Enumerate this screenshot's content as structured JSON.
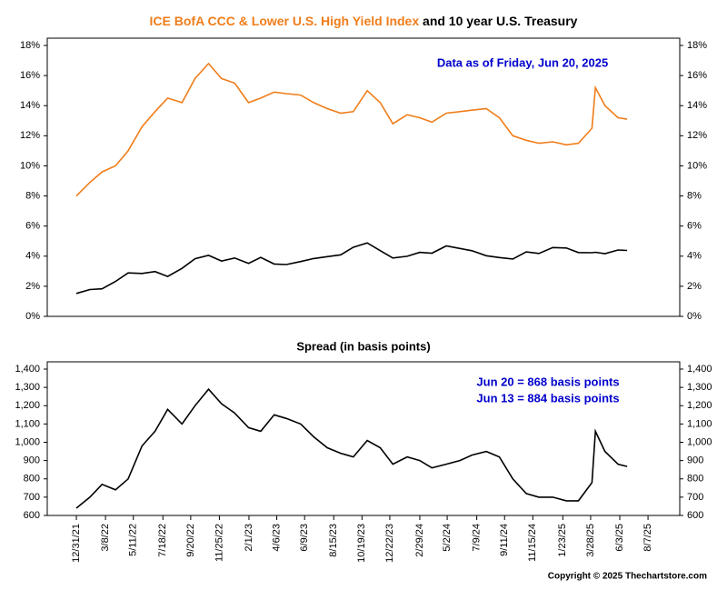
{
  "chart_data": [
    {
      "type": "line",
      "title": [
        "ICE BofA CCC & Lower U.S. High Yield Index",
        "and 10 year U.S. Treasury"
      ],
      "title_colors": [
        "#f07d1a",
        "#000000"
      ],
      "annotation": "Data as of Friday, Jun 20, 2025",
      "annotation_color": "#0000cc",
      "x": [
        "12/31/21",
        "1/31/22",
        "2/28/22",
        "3/31/22",
        "4/29/22",
        "5/31/22",
        "6/30/22",
        "7/29/22",
        "8/31/22",
        "9/30/22",
        "10/31/22",
        "11/30/22",
        "12/30/22",
        "1/31/23",
        "2/28/23",
        "3/31/23",
        "4/28/23",
        "5/31/23",
        "6/30/23",
        "7/31/23",
        "8/31/23",
        "9/29/23",
        "10/31/23",
        "11/30/23",
        "12/29/23",
        "1/31/24",
        "2/29/24",
        "3/28/24",
        "4/30/24",
        "5/31/24",
        "6/28/24",
        "7/31/24",
        "8/30/24",
        "9/30/24",
        "10/31/24",
        "11/29/24",
        "12/31/24",
        "1/31/25",
        "2/28/25",
        "3/31/25",
        "4/8/25",
        "4/30/25",
        "5/30/25",
        "6/20/25"
      ],
      "xlim": [
        "10/25/21",
        "10/19/25"
      ],
      "series": [
        {
          "name": "ICE BofA CCC & Lower U.S. High Yield Index",
          "color": "#f07d1a",
          "values": [
            8.0,
            8.9,
            9.6,
            10.0,
            11.0,
            12.6,
            13.6,
            14.5,
            14.2,
            15.8,
            16.8,
            15.8,
            15.5,
            14.2,
            14.5,
            14.9,
            14.8,
            14.7,
            14.2,
            13.8,
            13.5,
            13.6,
            15.0,
            14.2,
            12.8,
            13.4,
            13.2,
            12.9,
            13.5,
            13.6,
            13.7,
            13.8,
            13.2,
            12.0,
            11.7,
            11.5,
            11.6,
            11.4,
            11.5,
            12.5,
            15.2,
            14.0,
            13.2,
            13.1
          ]
        },
        {
          "name": "10 year U.S. Treasury",
          "color": "#000000",
          "values": [
            1.52,
            1.78,
            1.83,
            2.32,
            2.89,
            2.85,
            2.98,
            2.65,
            3.19,
            3.83,
            4.05,
            3.68,
            3.88,
            3.52,
            3.92,
            3.48,
            3.44,
            3.64,
            3.84,
            3.97,
            4.09,
            4.59,
            4.88,
            4.37,
            3.88,
            3.99,
            4.25,
            4.2,
            4.68,
            4.51,
            4.36,
            4.03,
            3.91,
            3.81,
            4.28,
            4.18,
            4.57,
            4.54,
            4.24,
            4.23,
            4.26,
            4.17,
            4.41,
            4.38
          ]
        }
      ],
      "ylim": [
        0,
        18
      ],
      "yticks": [
        {
          "value": 0,
          "label": "0%"
        },
        {
          "value": 2,
          "label": "2%"
        },
        {
          "value": 4,
          "label": "4%"
        },
        {
          "value": 6,
          "label": "6%"
        },
        {
          "value": 8,
          "label": "8%"
        },
        {
          "value": 10,
          "label": "10%"
        },
        {
          "value": 12,
          "label": "12%"
        },
        {
          "value": 14,
          "label": "14%"
        },
        {
          "value": 16,
          "label": "16%"
        },
        {
          "value": 18,
          "label": "18%"
        }
      ]
    },
    {
      "type": "line",
      "title": "Spread (in basis points)",
      "annotations": [
        "Jun 20 = 868 basis points",
        "Jun 13 = 884 basis points"
      ],
      "annotation_color": "#0000cc",
      "x": [
        "12/31/21",
        "1/31/22",
        "2/28/22",
        "3/31/22",
        "4/29/22",
        "5/31/22",
        "6/30/22",
        "7/29/22",
        "8/31/22",
        "9/30/22",
        "10/31/22",
        "11/30/22",
        "12/30/22",
        "1/31/23",
        "2/28/23",
        "3/31/23",
        "4/28/23",
        "5/31/23",
        "6/30/23",
        "7/31/23",
        "8/31/23",
        "9/29/23",
        "10/31/23",
        "11/30/23",
        "12/29/23",
        "1/31/24",
        "2/29/24",
        "3/28/24",
        "4/30/24",
        "5/31/24",
        "6/28/24",
        "7/31/24",
        "8/30/24",
        "9/30/24",
        "10/31/24",
        "11/29/24",
        "12/31/24",
        "1/31/25",
        "2/28/25",
        "3/31/25",
        "4/8/25",
        "4/30/25",
        "5/30/25",
        "6/20/25"
      ],
      "xlim": [
        "10/25/21",
        "10/19/25"
      ],
      "xticks": [
        "12/31/21",
        "3/8/22",
        "5/11/22",
        "7/18/22",
        "9/20/22",
        "11/25/22",
        "2/1/23",
        "4/6/23",
        "6/9/23",
        "8/15/23",
        "10/19/23",
        "12/22/23",
        "2/29/24",
        "5/2/24",
        "7/9/24",
        "9/11/24",
        "11/15/24",
        "1/23/25",
        "3/28/25",
        "6/3/25",
        "8/7/25"
      ],
      "series": [
        {
          "name": "Spread",
          "color": "#000000",
          "values": [
            640,
            700,
            770,
            740,
            800,
            980,
            1060,
            1180,
            1100,
            1200,
            1290,
            1210,
            1160,
            1080,
            1060,
            1150,
            1130,
            1100,
            1030,
            970,
            940,
            920,
            1010,
            970,
            880,
            920,
            900,
            860,
            880,
            900,
            930,
            950,
            920,
            800,
            720,
            700,
            700,
            680,
            680,
            780,
            1060,
            950,
            880,
            868
          ]
        }
      ],
      "ylim": [
        600,
        1400
      ],
      "yticks": [
        600,
        700,
        800,
        900,
        {
          "value": 1000,
          "label": "1,000"
        },
        {
          "value": 1100,
          "label": "1,100"
        },
        {
          "value": 1200,
          "label": "1,200"
        },
        {
          "value": 1300,
          "label": "1,300"
        },
        {
          "value": 1400,
          "label": "1,400"
        }
      ]
    }
  ],
  "copyright": "Copyright © 2025 Thechartstore.com"
}
